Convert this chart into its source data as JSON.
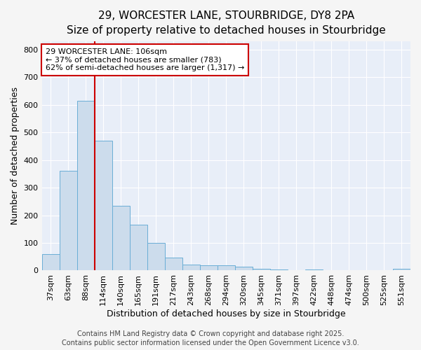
{
  "title_line1": "29, WORCESTER LANE, STOURBRIDGE, DY8 2PA",
  "title_line2": "Size of property relative to detached houses in Stourbridge",
  "xlabel": "Distribution of detached houses by size in Stourbridge",
  "ylabel": "Number of detached properties",
  "categories": [
    "37sqm",
    "63sqm",
    "88sqm",
    "114sqm",
    "140sqm",
    "165sqm",
    "191sqm",
    "217sqm",
    "243sqm",
    "268sqm",
    "294sqm",
    "320sqm",
    "345sqm",
    "371sqm",
    "397sqm",
    "422sqm",
    "448sqm",
    "474sqm",
    "500sqm",
    "525sqm",
    "551sqm"
  ],
  "values": [
    60,
    360,
    615,
    470,
    235,
    165,
    100,
    48,
    22,
    20,
    18,
    13,
    5,
    3,
    2,
    4,
    2,
    1,
    1,
    1,
    5
  ],
  "bar_color": "#ccdcec",
  "bar_edge_color": "#6aaed6",
  "vline_color": "#cc0000",
  "ylim": [
    0,
    830
  ],
  "yticks": [
    0,
    100,
    200,
    300,
    400,
    500,
    600,
    700,
    800
  ],
  "annotation_line1": "29 WORCESTER LANE: 106sqm",
  "annotation_line2": "← 37% of detached houses are smaller (783)",
  "annotation_line3": "62% of semi-detached houses are larger (1,317) →",
  "annotation_box_facecolor": "#ffffff",
  "annotation_box_edgecolor": "#cc0000",
  "footer_line1": "Contains HM Land Registry data © Crown copyright and database right 2025.",
  "footer_line2": "Contains public sector information licensed under the Open Government Licence v3.0.",
  "fig_facecolor": "#f5f5f5",
  "plot_facecolor": "#e8eef8",
  "grid_color": "#ffffff",
  "title1_fontsize": 11,
  "title2_fontsize": 10,
  "axis_label_fontsize": 9,
  "tick_fontsize": 8,
  "annotation_fontsize": 8,
  "footer_fontsize": 7
}
